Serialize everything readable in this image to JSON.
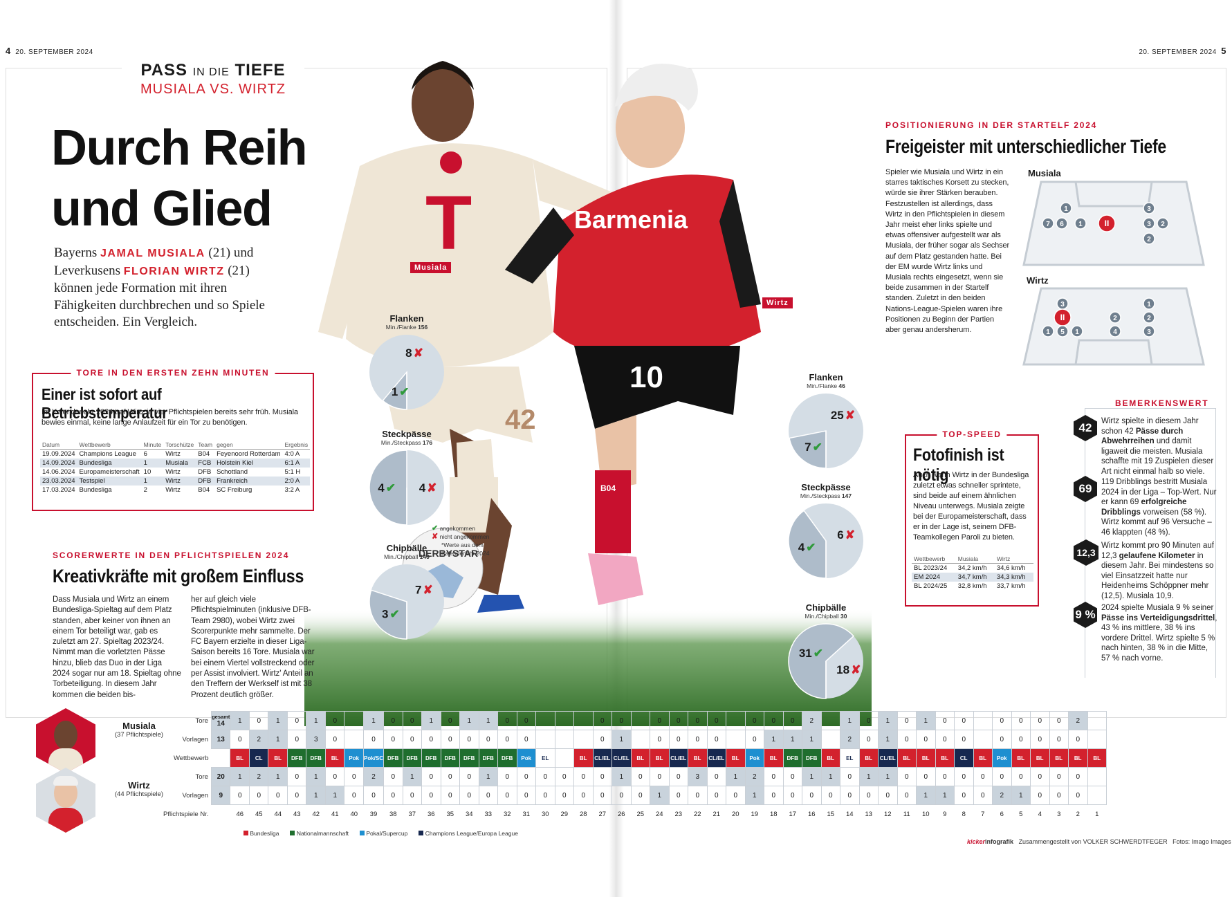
{
  "folio": {
    "left_num": "4",
    "left_date": "20. SEPTEMBER 2024",
    "right_date": "20. SEPTEMBER 2024",
    "right_num": "5"
  },
  "rubric": {
    "a": "PASS",
    "b": "IN DIE",
    "c": "TIEFE",
    "sub": "MUSIALA VS. WIRTZ"
  },
  "headline": {
    "line1": "Durch Reih",
    "line2": "und Glied"
  },
  "intro": {
    "t1": "Bayerns ",
    "musiala": "JAMAL MUSIALA",
    "t2": " (21) und Leverkusens ",
    "wirtz": "FLORIAN WIRTZ",
    "t3": " (21) können jede Formation mit ihren Fähigkeiten durchbrechen und so Spiele entscheiden. Ein Vergleich."
  },
  "photo_tags": {
    "musiala": "Musiala",
    "wirtz": "Wirtz"
  },
  "photo": {
    "bayern_shirt": "T",
    "leverkusen_shirt": "Barmenia",
    "musiala_number": "42",
    "wirtz_number": "10",
    "ball": "DERBYSTAR",
    "socks": "B04"
  },
  "goals_box": {
    "kicker": "TORE IN DEN ERSTEN ZEHN MINUTEN",
    "title": "Einer ist sofort auf Betriebstemperatur",
    "text": "Im Kalenderjahr 2024 traf Wirtz in vier Pflichtspielen bereits sehr früh. Musiala bewies einmal, keine lange Anlaufzeit für ein Tor zu benötigen.",
    "headers": [
      "Datum",
      "Wettbewerb",
      "Minute",
      "Torschütze",
      "Team",
      "gegen",
      "Ergebnis"
    ],
    "rows": [
      [
        "19.09.2024",
        "Champions League",
        "6",
        "Wirtz",
        "B04",
        "Feyenoord Rotterdam",
        "4:0 A"
      ],
      [
        "14.09.2024",
        "Bundesliga",
        "1",
        "Musiala",
        "FCB",
        "Holstein Kiel",
        "6:1 A"
      ],
      [
        "14.06.2024",
        "Europameisterschaft",
        "10",
        "Wirtz",
        "DFB",
        "Schottland",
        "5:1 H"
      ],
      [
        "23.03.2024",
        "Testspiel",
        "1",
        "Wirtz",
        "DFB",
        "Frankreich",
        "2:0 A"
      ],
      [
        "17.03.2024",
        "Bundesliga",
        "2",
        "Wirtz",
        "B04",
        "SC Freiburg",
        "3:2 A"
      ]
    ]
  },
  "scorer": {
    "kicker": "SCORERWERTE IN DEN PFLICHTSPIELEN 2024",
    "title": "Kreativkräfte mit großem Einfluss",
    "col1": "Dass Musiala und Wirtz an einem Bundesliga-Spieltag auf dem Platz standen, aber keiner von ihnen an einem Tor beteiligt war, gab es zuletzt am 27. Spieltag 2023/24. Nimmt man die vorletzten Pässe hinzu, blieb das Duo in der Liga 2024 sogar nur am 18. Spieltag ohne Torbeteiligung. In diesem Jahr kommen die beiden bis-",
    "col2": "her auf gleich viele Pflichtspielminuten (inklusive DFB-Team 2980), wobei Wirtz zwei Scorerpunkte mehr sammelte. Der FC Bayern erzielte in dieser Liga-Saison bereits 16 Tore. Musiala war bei einem Viertel vollstreckend oder per Assist involviert. Wirtz' Anteil an den Treffern der Werkself ist mit 38 Prozent deutlich größer."
  },
  "pies_musiala": [
    {
      "title": "Flanken",
      "sub": "Min./Flanke",
      "subval": "156",
      "ok": 1,
      "bad": 8
    },
    {
      "title": "Steckpässe",
      "sub": "Min./Steckpass",
      "subval": "176",
      "ok": 4,
      "bad": 4
    },
    {
      "title": "Chipbälle",
      "sub": "Min./Chipball",
      "subval": "140",
      "ok": 3,
      "bad": 7
    }
  ],
  "pies_wirtz": [
    {
      "title": "Flanken",
      "sub": "Min./Flanke",
      "subval": "46",
      "ok": 7,
      "bad": 25
    },
    {
      "title": "Steckpässe",
      "sub": "Min./Steckpass",
      "subval": "147",
      "ok": 4,
      "bad": 6
    },
    {
      "title": "Chipbälle",
      "sub": "Min./Chipball",
      "subval": "30",
      "ok": 31,
      "bad": 18
    }
  ],
  "pie_legend": {
    "ok": "angekommen",
    "bad": "nicht angekommen",
    "note": "*Werte aus dem Kalenderjahr 2024"
  },
  "position": {
    "kicker": "POSITIONIERUNG IN DER STARTELF 2024",
    "title": "Freigeister mit unterschiedlicher Tiefe",
    "text": "Spieler wie Musiala und Wirtz in ein starres taktisches Korsett zu stecken, würde sie ihrer Stärken berauben. Festzustellen ist allerdings, dass Wirtz in den Pflichtspielen in diesem Jahr meist eher links spielte und etwas offensiver aufgestellt war als Musiala, der früher sogar als Sechser auf dem Platz gestanden hatte. Bei der EM wurde Wirtz links und Musiala rechts eingesetzt, wenn sie beide zusammen in der Startelf standen. Zuletzt in den beiden Nations-League-Spielen waren ihre Positionen zu Beginn der Partien aber genau andersherum.",
    "musiala_label": "Musiala",
    "wirtz_label": "Wirtz",
    "musiala_dots": [
      "1",
      "7",
      "6",
      "1",
      "II",
      "3",
      "3",
      "2",
      "2"
    ],
    "wirtz_dots": [
      "3",
      "II",
      "1",
      "5",
      "1",
      "2",
      "4",
      "1",
      "2",
      "3"
    ]
  },
  "topspeed": {
    "kicker": "TOP-SPEED",
    "title": "Fotofinish ist nötig",
    "text": "Auch wenn Wirtz in der Bundesliga zuletzt etwas schneller sprintete, sind beide auf einem ähnlichen Niveau unterwegs. Musiala zeigte bei der Europameisterschaft, dass er in der Lage ist, seinem DFB-Teamkollegen Paroli zu bieten.",
    "headers": [
      "Wettbewerb",
      "Musiala",
      "Wirtz"
    ],
    "rows": [
      [
        "BL 2023/24",
        "34,2 km/h",
        "34,6 km/h"
      ],
      [
        "EM 2024",
        "34,7 km/h",
        "34,3 km/h"
      ],
      [
        "BL 2024/25",
        "32,8 km/h",
        "33,7 km/h"
      ]
    ]
  },
  "notable": {
    "kicker": "BEMERKENSWERT",
    "items": [
      {
        "num": "42",
        "pre": "Wirtz spielte in diesem Jahr schon 42 ",
        "bold": "Pässe durch Abwehrreihen",
        "post": " und damit ligaweit die meisten. Musiala schaffte mit 19 Zuspielen dieser Art nicht einmal halb so viele."
      },
      {
        "num": "69",
        "pre": "119 Dribblings bestritt Musiala 2024 in der Liga – Top-Wert. Nur er kann 69 ",
        "bold": "erfolgreiche Dribblings",
        "post": " vorweisen (58 %). Wirtz kommt auf 96 Versuche – 46 klappten (48 %)."
      },
      {
        "num": "12,3",
        "pre": "Wirtz kommt pro 90 Minuten auf 12,3 ",
        "bold": "gelaufene Kilometer",
        "post": " in diesem Jahr. Bei mindestens so viel Einsatzzeit hatte nur Heidenheims Schöppner mehr (12,5). Musiala 10,9."
      },
      {
        "num": "9 %",
        "pre": "2024 spielte Musiala 9 % seiner ",
        "bold": "Pässe ins Verteidigungsdrittel",
        "post": ", 43 % ins mittlere, 38 % ins vordere Drittel. Wirtz spielte 5 % nach hinten, 38 % in die Mitte, 57 % nach vorne."
      }
    ]
  },
  "grid": {
    "musiala_name": "Musiala",
    "musiala_sub": "(37 Pflichtspiele)",
    "wirtz_name": "Wirtz",
    "wirtz_sub": "(44 Pflichtspiele)",
    "tore": "Tore",
    "vorlagen": "Vorlagen",
    "wettbewerb": "Wettbewerb",
    "spielnr": "Pflichtspiele Nr.",
    "gesamt_label": "gesamt",
    "m_tore_total": "14",
    "m_vor_total": "13",
    "w_tore_total": "20",
    "w_vor_total": "9",
    "games": [
      "46",
      "45",
      "44",
      "43",
      "42",
      "41",
      "40",
      "39",
      "38",
      "37",
      "36",
      "35",
      "34",
      "33",
      "32",
      "31",
      "30",
      "29",
      "28",
      "27",
      "26",
      "25",
      "24",
      "23",
      "22",
      "21",
      "20",
      "19",
      "18",
      "17",
      "16",
      "15",
      "14",
      "13",
      "12",
      "11",
      "10",
      "9",
      "8",
      "7",
      "6",
      "5",
      "4",
      "3",
      "2",
      "1"
    ],
    "comp": [
      "BL",
      "CL",
      "BL",
      "DFB",
      "DFB",
      "BL",
      "Pok",
      "Pok/SC",
      "DFB",
      "DFB",
      "DFB",
      "DFB",
      "DFB",
      "DFB",
      "DFB",
      "Pok",
      "EL",
      "",
      "BL",
      "CL/EL",
      "CL/EL",
      "BL",
      "BL",
      "CL/EL",
      "BL",
      "CL/EL",
      "BL",
      "Pok",
      "BL",
      "DFB",
      "DFB",
      "BL",
      "EL",
      "BL",
      "CL/EL",
      "BL",
      "BL",
      "BL",
      "CL",
      "BL",
      "Pok",
      "BL",
      "BL",
      "BL",
      "BL",
      "BL"
    ],
    "m_tore": [
      "1",
      "0",
      "1",
      "0",
      "1",
      "0",
      "",
      "1",
      "0",
      "0",
      "1",
      "0",
      "1",
      "1",
      "0",
      "0",
      "",
      "",
      "",
      "0",
      "0",
      "",
      "0",
      "0",
      "0",
      "0",
      "",
      "0",
      "0",
      "0",
      "2",
      "",
      "1",
      "0",
      "1",
      "0",
      "1",
      "0",
      "0",
      "",
      "0",
      "0",
      "0",
      "0",
      "2",
      ""
    ],
    "m_vor": [
      "0",
      "2",
      "1",
      "0",
      "3",
      "0",
      "",
      "0",
      "0",
      "0",
      "0",
      "0",
      "0",
      "0",
      "0",
      "0",
      "",
      "",
      "",
      "0",
      "1",
      "",
      "0",
      "0",
      "0",
      "0",
      "",
      "0",
      "1",
      "1",
      "1",
      "",
      "2",
      "0",
      "1",
      "0",
      "0",
      "0",
      "0",
      "",
      "0",
      "0",
      "0",
      "0",
      "0",
      ""
    ],
    "w_tore": [
      "1",
      "2",
      "1",
      "0",
      "1",
      "0",
      "0",
      "2",
      "0",
      "1",
      "0",
      "0",
      "0",
      "1",
      "0",
      "0",
      "0",
      "0",
      "0",
      "0",
      "1",
      "0",
      "0",
      "0",
      "3",
      "0",
      "1",
      "2",
      "0",
      "0",
      "1",
      "1",
      "0",
      "1",
      "1",
      "0",
      "0",
      "0",
      "0",
      "0",
      "0",
      "0",
      "0",
      "0",
      "0",
      ""
    ],
    "w_vor": [
      "0",
      "0",
      "0",
      "0",
      "1",
      "1",
      "0",
      "0",
      "0",
      "0",
      "0",
      "0",
      "0",
      "0",
      "0",
      "0",
      "0",
      "0",
      "0",
      "0",
      "0",
      "0",
      "1",
      "0",
      "0",
      "0",
      "0",
      "1",
      "0",
      "0",
      "0",
      "0",
      "0",
      "0",
      "0",
      "0",
      "1",
      "1",
      "0",
      "0",
      "2",
      "1",
      "0",
      "0",
      "0",
      ""
    ],
    "legend": [
      "Bundesliga",
      "Nationalmannschaft",
      "Pokal/Supercup",
      "Champions League/Europa League"
    ]
  },
  "credits": {
    "brand": "kicker",
    "brand2": "infografik",
    "author": "Zusammengestellt von VOLKER SCHWERDTFEGER",
    "photo": "Fotos: Imago Images"
  },
  "colors": {
    "red": "#d3212d",
    "bl": "#d3212d",
    "dfb": "#1f6e2e",
    "pok": "#1e8fd0",
    "cl": "#17284f",
    "pie_bg": "#d4dde5",
    "pie_ok": "#aebcca"
  }
}
